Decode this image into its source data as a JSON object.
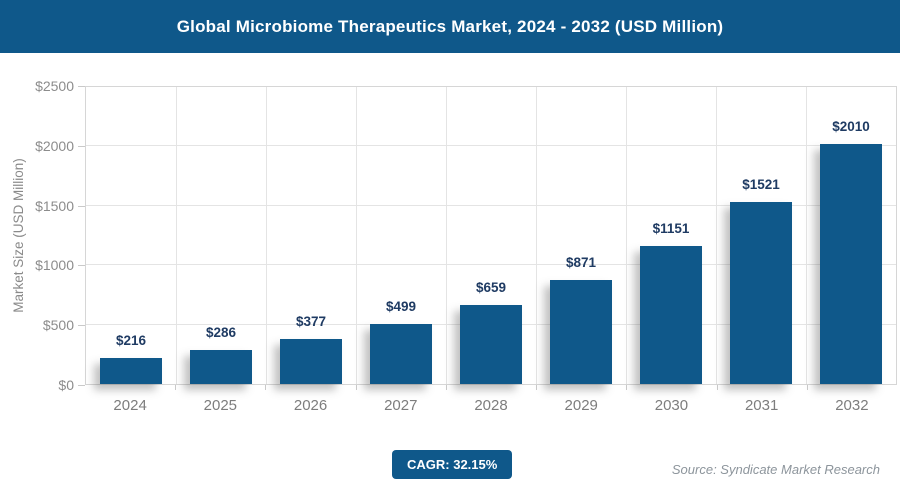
{
  "header": {
    "title": "Global Microbiome Therapeutics Market, 2024 - 2032 (USD Million)",
    "bar_color": "#0f588a",
    "text_color": "#ffffff"
  },
  "chart_data": {
    "type": "bar",
    "title": "Global Microbiome Therapeutics Market, 2024 - 2032 (USD Million)",
    "categories": [
      "2024",
      "2025",
      "2026",
      "2027",
      "2028",
      "2029",
      "2030",
      "2031",
      "2032"
    ],
    "values": [
      216,
      286,
      377,
      499,
      659,
      871,
      1151,
      1521,
      2010
    ],
    "value_labels": [
      "$216",
      "$286",
      "$377",
      "$499",
      "$659",
      "$871",
      "$1151",
      "$1521",
      "$2010"
    ],
    "xlabel": "",
    "ylabel": "Market Size (USD Million)",
    "ylim": [
      0,
      2500
    ],
    "ytick_values": [
      0,
      500,
      1000,
      1500,
      2000,
      2500
    ],
    "ytick_labels": [
      "$0",
      "$500",
      "$1000",
      "$1500",
      "$2000",
      "$2500"
    ],
    "grid": true,
    "legend": false,
    "bar_color": "#0f588a",
    "value_label_color": "#1f3b63"
  },
  "footer": {
    "cagr_label": "CAGR: 32.15%",
    "source": "Source: Syndicate Market Research"
  }
}
